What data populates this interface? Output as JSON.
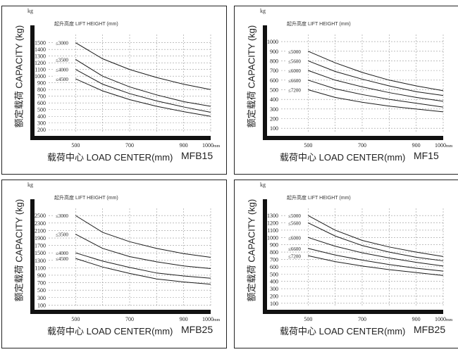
{
  "chart_data": [
    {
      "type": "line",
      "model": "MFB15",
      "yunit": "kg",
      "xunit": "mm",
      "ylabel": "额定载荷 CAPACITY (kg)",
      "xlabel": "载荷中心  LOAD CENTER(mm)",
      "lift_height_label": "起升高度 LIFT HEIGHT (mm)",
      "yticks": [
        200,
        300,
        400,
        500,
        600,
        700,
        800,
        900,
        1000,
        1100,
        1200,
        1300,
        1400,
        1500
      ],
      "ylim": [
        150,
        1560
      ],
      "xticks": [
        "500",
        "700",
        "900",
        "1000"
      ],
      "xlim": [
        400,
        1000
      ],
      "series": [
        {
          "name": "≤3000",
          "x": [
            500,
            600,
            700,
            800,
            900,
            1000
          ],
          "y": [
            1500,
            1260,
            1100,
            980,
            880,
            800
          ]
        },
        {
          "name": "≤3500",
          "x": [
            500,
            600,
            700,
            800,
            900,
            1000
          ],
          "y": [
            1250,
            1000,
            840,
            720,
            620,
            550
          ]
        },
        {
          "name": "≤4000",
          "x": [
            500,
            600,
            700,
            800,
            900,
            1000
          ],
          "y": [
            1100,
            880,
            740,
            630,
            540,
            460
          ]
        },
        {
          "name": "≤4500",
          "x": [
            500,
            600,
            700,
            800,
            900,
            1000
          ],
          "y": [
            960,
            780,
            650,
            550,
            470,
            400
          ]
        }
      ]
    },
    {
      "type": "line",
      "model": "MF15",
      "yunit": "kg",
      "xunit": "mm",
      "ylabel": "额定载荷 CAPACITY (kg)",
      "xlabel": "载荷中心  LOAD CENTER(mm)",
      "lift_height_label": "起升高度 LIFT HEIGHT (mm)",
      "yticks": [
        100,
        200,
        300,
        400,
        500,
        600,
        700,
        800,
        900,
        1000
      ],
      "ylim": [
        50,
        1030
      ],
      "xticks": [
        "500",
        "700",
        "900",
        "1000"
      ],
      "xlim": [
        400,
        1000
      ],
      "series": [
        {
          "name": "≤5000",
          "x": [
            500,
            600,
            700,
            800,
            900,
            1000
          ],
          "y": [
            900,
            780,
            680,
            600,
            540,
            490
          ]
        },
        {
          "name": "≤5600",
          "x": [
            500,
            600,
            700,
            800,
            900,
            1000
          ],
          "y": [
            800,
            690,
            610,
            540,
            480,
            440
          ]
        },
        {
          "name": "≤6000",
          "x": [
            500,
            600,
            700,
            800,
            900,
            1000
          ],
          "y": [
            700,
            600,
            530,
            470,
            420,
            380
          ]
        },
        {
          "name": "≤6600",
          "x": [
            500,
            600,
            700,
            800,
            900,
            1000
          ],
          "y": [
            600,
            510,
            450,
            400,
            360,
            320
          ]
        },
        {
          "name": "≤7200",
          "x": [
            500,
            600,
            700,
            800,
            900,
            1000
          ],
          "y": [
            500,
            420,
            370,
            330,
            300,
            270
          ]
        }
      ]
    },
    {
      "type": "line",
      "model": "MFB25",
      "yunit": "kg",
      "xunit": "mm",
      "ylabel": "额定载荷 CAPACITY (kg)",
      "xlabel": "载荷中心  LOAD CENTER(mm)",
      "lift_height_label": "起升高度 LIFT HEIGHT (mm)",
      "yticks": [
        100,
        300,
        500,
        700,
        900,
        1100,
        1300,
        1500,
        1700,
        1900,
        2100,
        2300,
        2500
      ],
      "ylim": [
        50,
        2580
      ],
      "xticks": [
        "500",
        "700",
        "900",
        "1000"
      ],
      "xlim": [
        400,
        1000
      ],
      "series": [
        {
          "name": "≤3000",
          "x": [
            500,
            600,
            700,
            800,
            900,
            1000
          ],
          "y": [
            2500,
            2050,
            1800,
            1620,
            1480,
            1380
          ]
        },
        {
          "name": "≤3500",
          "x": [
            500,
            600,
            700,
            800,
            900,
            1000
          ],
          "y": [
            2000,
            1620,
            1400,
            1260,
            1150,
            1080
          ]
        },
        {
          "name": "≤4000",
          "x": [
            500,
            600,
            700,
            800,
            900,
            1000
          ],
          "y": [
            1500,
            1280,
            1110,
            960,
            880,
            820
          ]
        },
        {
          "name": "≤4500",
          "x": [
            500,
            600,
            700,
            800,
            900,
            1000
          ],
          "y": [
            1350,
            1120,
            950,
            800,
            720,
            660
          ]
        }
      ]
    },
    {
      "type": "line",
      "model": "MFB25",
      "yunit": "kg",
      "xunit": "mm",
      "ylabel": "额定载荷 CAPACITY (kg)",
      "xlabel": "载荷中心  LOAD CENTER(mm)",
      "lift_height_label": "起升高度 LIFT HEIGHT (mm)",
      "yticks": [
        100,
        200,
        300,
        400,
        500,
        600,
        700,
        800,
        900,
        1000,
        1100,
        1200,
        1300
      ],
      "ylim": [
        50,
        1340
      ],
      "xticks": [
        "500",
        "700",
        "900",
        "1000"
      ],
      "xlim": [
        400,
        1000
      ],
      "series": [
        {
          "name": "≤5000",
          "x": [
            500,
            600,
            700,
            800,
            900,
            1000
          ],
          "y": [
            1300,
            1100,
            960,
            870,
            800,
            740
          ]
        },
        {
          "name": "≤5600",
          "x": [
            500,
            600,
            700,
            800,
            900,
            1000
          ],
          "y": [
            1200,
            1020,
            890,
            800,
            730,
            680
          ]
        },
        {
          "name": "≤6000",
          "x": [
            500,
            600,
            700,
            800,
            900,
            1000
          ],
          "y": [
            1000,
            880,
            790,
            720,
            660,
            610
          ]
        },
        {
          "name": "≤6600",
          "x": [
            500,
            600,
            700,
            800,
            900,
            1000
          ],
          "y": [
            850,
            760,
            690,
            630,
            580,
            540
          ]
        },
        {
          "name": "≤7200",
          "x": [
            500,
            600,
            700,
            800,
            900,
            1000
          ],
          "y": [
            750,
            670,
            610,
            560,
            520,
            480
          ]
        }
      ]
    }
  ],
  "colors": {
    "line": "#1a1a1a",
    "axis_bar": "#111111",
    "grid": "#999999",
    "frame": "#222222"
  }
}
